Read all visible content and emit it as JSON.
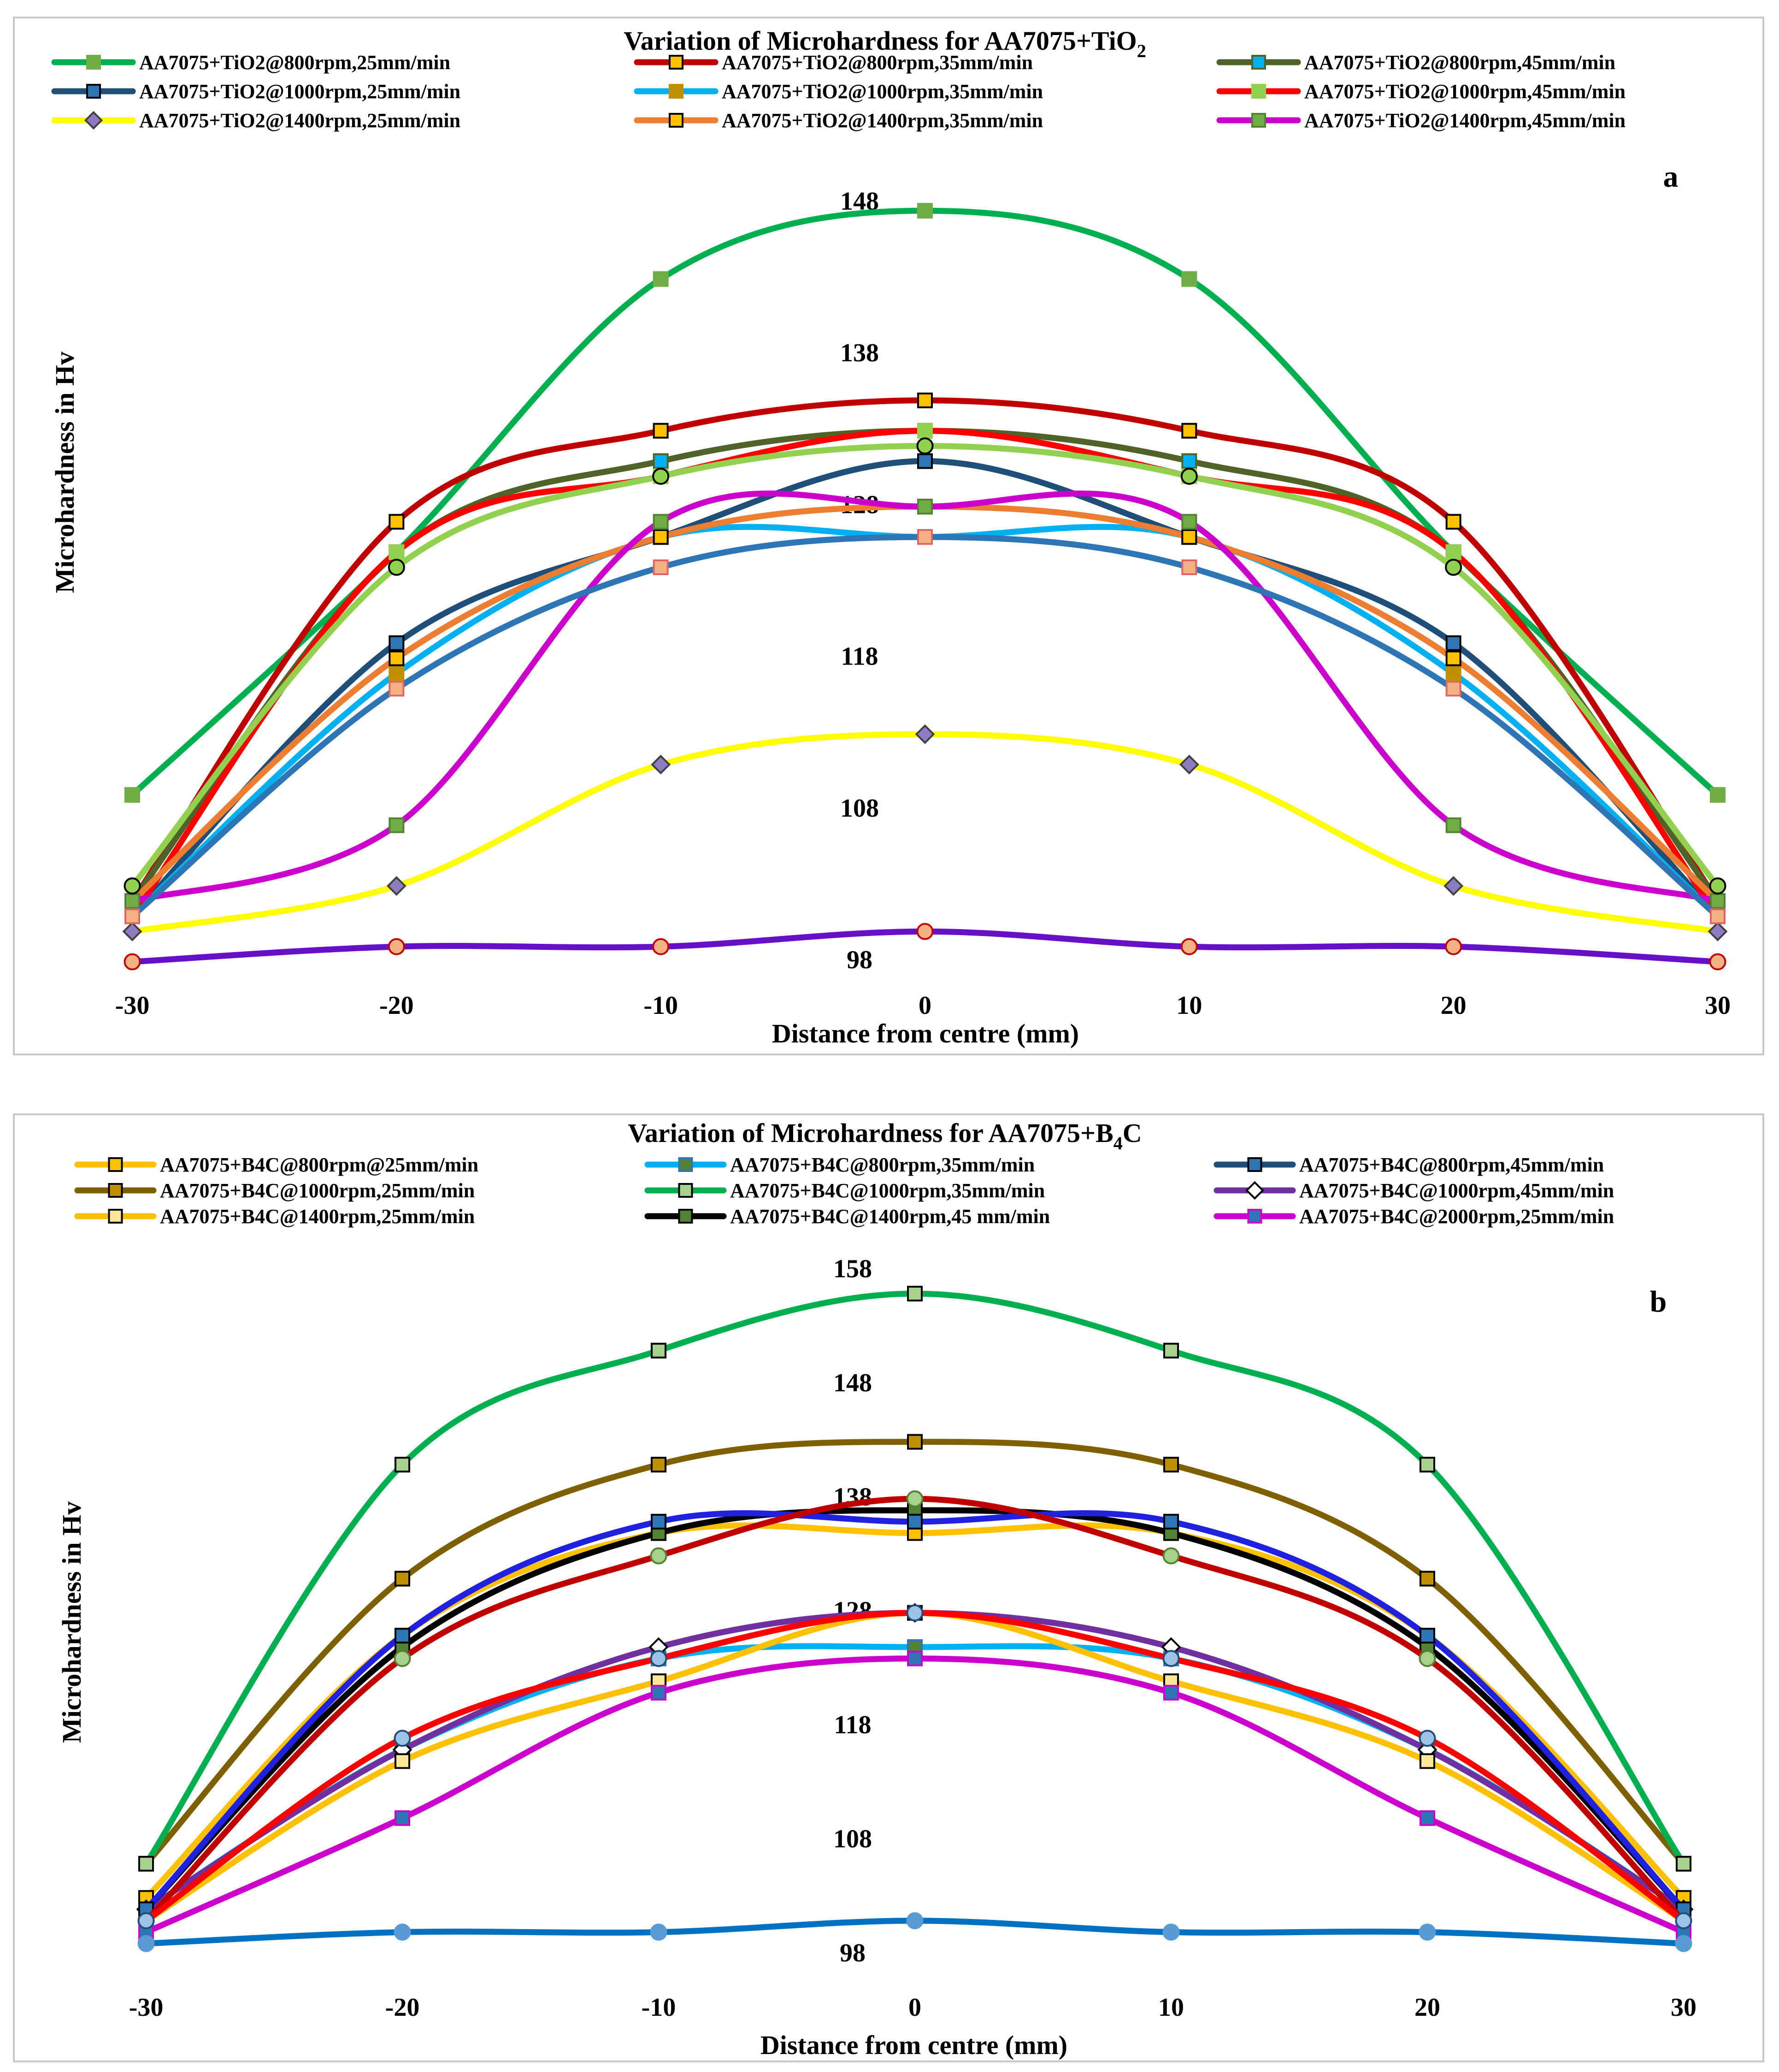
{
  "chart_data": [
    {
      "type": "line",
      "panel_label": "a",
      "title": "Variation of Microhardness for AA7075+TiO",
      "title_subscript": "2",
      "xlabel": "Distance from centre (mm)",
      "ylabel": "Microhardness in Hv",
      "x": [
        -30,
        -20,
        -10,
        0,
        10,
        20,
        30
      ],
      "x_tick_labels": [
        "-30",
        "-20",
        "-10",
        "0",
        "10",
        "20",
        "30"
      ],
      "y_tick_labels": [
        "98",
        "108",
        "118",
        "128",
        "138",
        "148"
      ],
      "ylim": [
        98,
        150
      ],
      "legend_position": "top",
      "series": [
        {
          "name": "AA7075+TiO2@800rpm,25mm/min",
          "color": "#00b050",
          "marker": "square",
          "marker_fill": "#70ad47",
          "marker_stroke": "#70ad47",
          "values": [
            109,
            125,
            143,
            147.5,
            143,
            125,
            109
          ]
        },
        {
          "name": "AA7075+TiO2@800rpm,35mm/min",
          "color": "#c00000",
          "marker": "square",
          "marker_fill": "#ffc000",
          "marker_stroke": "#000000",
          "values": [
            102,
            127,
            133,
            135,
            133,
            127,
            102
          ]
        },
        {
          "name": "AA7075+TiO2@800rpm,45mm/min",
          "color": "#4f6228",
          "marker": "square",
          "marker_fill": "#00b0f0",
          "marker_stroke": "#4f6228",
          "values": [
            102,
            125,
            131,
            133,
            131,
            125,
            102
          ]
        },
        {
          "name": "AA7075+TiO2@1000rpm,25mm/min",
          "color": "#1f4e79",
          "marker": "square",
          "marker_fill": "#2e75b6",
          "marker_stroke": "#000000",
          "values": [
            101,
            119,
            126,
            131,
            126,
            119,
            101
          ]
        },
        {
          "name": "AA7075+TiO2@1000rpm,35mm/min",
          "color": "#00b0f0",
          "marker": "square",
          "marker_fill": "#bf9000",
          "marker_stroke": "#bf9000",
          "values": [
            101,
            117,
            126,
            126,
            126,
            117,
            101
          ]
        },
        {
          "name": "AA7075+TiO2@1000rpm,45mm/min",
          "color": "#ff0000",
          "marker": "square",
          "marker_fill": "#92d050",
          "marker_stroke": "#92d050",
          "values": [
            101,
            125,
            130,
            133,
            130,
            125,
            101
          ]
        },
        {
          "name": "AA7075+TiO2@1400rpm,25mm/min",
          "color": "#ffff00",
          "marker": "diamond",
          "marker_fill": "#8e7cc3",
          "marker_stroke": "#404040",
          "values": [
            100,
            103,
            111,
            113,
            111,
            103,
            100
          ]
        },
        {
          "name": "AA7075+TiO2@1400rpm,35mm/min",
          "color": "#ed7d31",
          "marker": "square",
          "marker_fill": "#ffc000",
          "marker_stroke": "#000000",
          "values": [
            102,
            118,
            126,
            128,
            126,
            118,
            102
          ]
        },
        {
          "name": "AA7075+TiO2@1400rpm,45mm/min",
          "color": "#cc00cc",
          "marker": "square",
          "marker_fill": "#70ad47",
          "marker_stroke": "#548235",
          "values": [
            102,
            107,
            127,
            128,
            127,
            107,
            102
          ]
        },
        {
          "name": "",
          "color": "#2e75b6",
          "marker": "square",
          "marker_fill": "#f4b183",
          "marker_stroke": "#e06666",
          "legend": false,
          "values": [
            101,
            116,
            124,
            126,
            124,
            116,
            101
          ]
        },
        {
          "name": "",
          "color": "#92d050",
          "marker": "circle",
          "marker_fill": "#92d050",
          "marker_stroke": "#000000",
          "legend": false,
          "values": [
            103,
            124,
            130,
            132,
            130,
            124,
            103
          ]
        },
        {
          "name": "",
          "color": "#6610c8",
          "marker": "circle",
          "marker_fill": "#f4b183",
          "marker_stroke": "#c00000",
          "legend": false,
          "values": [
            98,
            99,
            99,
            100,
            99,
            99,
            98
          ]
        }
      ]
    },
    {
      "type": "line",
      "panel_label": "b",
      "title": "Variation of Microhardness for AA7075+B",
      "title_subscript": "4",
      "title_suffix": "C",
      "xlabel": "Distance from centre (mm)",
      "ylabel": "Microhardness in Hv",
      "x": [
        -30,
        -20,
        -10,
        0,
        10,
        20,
        30
      ],
      "x_tick_labels": [
        "-30",
        "-20",
        "-10",
        "0",
        "10",
        "20",
        "30"
      ],
      "y_tick_labels": [
        "98",
        "108",
        "118",
        "128",
        "138",
        "148",
        "158"
      ],
      "ylim": [
        98,
        160
      ],
      "legend_position": "top",
      "series": [
        {
          "name": "AA7075+B4C@800rpm@25mm/min",
          "color": "#ffc000",
          "marker": "square",
          "marker_fill": "#ffc000",
          "marker_stroke": "#000000",
          "values": [
            103,
            126,
            135,
            135,
            135,
            126,
            103
          ]
        },
        {
          "name": "AA7075+B4C@800rpm,35mm/min",
          "color": "#00b0f0",
          "marker": "square",
          "marker_fill": "#548235",
          "marker_stroke": "#2e75b6",
          "values": [
            102,
            116,
            124,
            125,
            124,
            116,
            102
          ]
        },
        {
          "name": "AA7075+B4C@800rpm,45mm/min",
          "color": "#1f4e79",
          "marker": "square",
          "marker_fill": "#2e75b6",
          "marker_stroke": "#000000",
          "values": [
            102,
            125,
            135,
            137,
            135,
            125,
            102
          ]
        },
        {
          "name": "AA7075+B4C@1000rpm,25mm/min",
          "color": "#7f6000",
          "marker": "square",
          "marker_fill": "#bf9000",
          "marker_stroke": "#000000",
          "values": [
            106,
            131,
            141,
            143,
            141,
            131,
            106
          ]
        },
        {
          "name": "AA7075+B4C@1000rpm,35mm/min",
          "color": "#00b050",
          "marker": "square",
          "marker_fill": "#a9d18e",
          "marker_stroke": "#000000",
          "values": [
            106,
            141,
            151,
            156,
            151,
            141,
            106
          ]
        },
        {
          "name": "AA7075+B4C@1000rpm,45mm/min",
          "color": "#7030a0",
          "marker": "diamond",
          "marker_fill": "#ffffff",
          "marker_stroke": "#000000",
          "values": [
            102,
            116,
            125,
            128,
            125,
            116,
            102
          ]
        },
        {
          "name": "AA7075+B4C@1400rpm,25mm/min",
          "color": "#ffc000",
          "marker": "square",
          "marker_fill": "#ffe699",
          "marker_stroke": "#000000",
          "values": [
            101,
            115,
            122,
            128,
            122,
            115,
            101
          ]
        },
        {
          "name": "AA7075+B4C@1400rpm,45 mm/min",
          "color": "#000000",
          "marker": "square",
          "marker_fill": "#548235",
          "marker_stroke": "#000000",
          "values": [
            102,
            125,
            135,
            137,
            135,
            125,
            102
          ]
        },
        {
          "name": "AA7075+B4C@2000rpm,25mm/min",
          "color": "#cc00cc",
          "marker": "square",
          "marker_fill": "#2e75b6",
          "marker_stroke": "#cc00cc",
          "values": [
            100,
            110,
            121,
            124,
            121,
            110,
            100
          ]
        },
        {
          "name": "",
          "color": "#2020e0",
          "marker": "square",
          "marker_fill": "#2e75b6",
          "marker_stroke": "#000000",
          "legend": false,
          "values": [
            102,
            126,
            136,
            136,
            136,
            126,
            102
          ]
        },
        {
          "name": "",
          "color": "#c00000",
          "marker": "circle",
          "marker_fill": "#a9d18e",
          "marker_stroke": "#548235",
          "legend": false,
          "values": [
            101,
            124,
            133,
            138,
            133,
            124,
            101
          ]
        },
        {
          "name": "",
          "color": "#ff0000",
          "marker": "circle",
          "marker_fill": "#9dc3e6",
          "marker_stroke": "#1f4e79",
          "legend": false,
          "values": [
            101,
            117,
            124,
            128,
            124,
            117,
            101
          ]
        },
        {
          "name": "",
          "color": "#0070c0",
          "marker": "circle",
          "marker_fill": "#5b9bd5",
          "marker_stroke": "#5b9bd5",
          "legend": false,
          "values": [
            99,
            100,
            100,
            101,
            100,
            100,
            99
          ]
        }
      ]
    }
  ]
}
